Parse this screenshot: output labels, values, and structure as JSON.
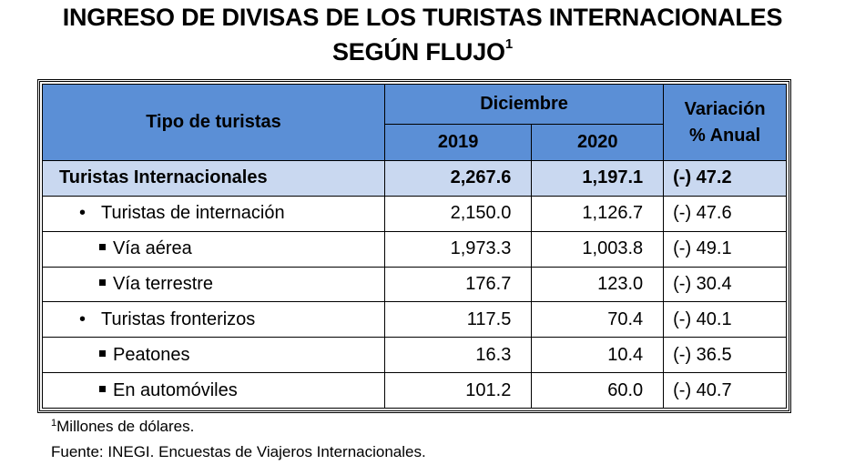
{
  "title_line1": "INGRESO DE DIVISAS DE LOS TURISTAS INTERNACIONALES",
  "title_line2": "SEGÚN FLUJO",
  "title_footnote_mark": "1",
  "headers": {
    "type": "Tipo de turistas",
    "period": "Diciembre",
    "year1": "2019",
    "year2": "2020",
    "var_line1": "Variación",
    "var_line2": "% Anual"
  },
  "chart_data": {
    "type": "table",
    "columns": [
      "Tipo de turistas",
      "2019",
      "2020",
      "Variación % Anual"
    ],
    "rows": [
      {
        "label": "Turistas Internacionales",
        "level": 0,
        "y2019": "2,267.6",
        "y2020": "1,197.1",
        "variation": "(-) 47.2"
      },
      {
        "label": "Turistas de internación",
        "level": 1,
        "y2019": "2,150.0",
        "y2020": "1,126.7",
        "variation": "(-) 47.6"
      },
      {
        "label": "Vía aérea",
        "level": 2,
        "y2019": "1,973.3",
        "y2020": "1,003.8",
        "variation": "(-) 49.1"
      },
      {
        "label": "Vía terrestre",
        "level": 2,
        "y2019": "176.7",
        "y2020": "123.0",
        "variation": "(-) 30.4"
      },
      {
        "label": "Turistas fronterizos",
        "level": 1,
        "y2019": "117.5",
        "y2020": "70.4",
        "variation": "(-) 40.1"
      },
      {
        "label": "Peatones",
        "level": 2,
        "y2019": "16.3",
        "y2020": "10.4",
        "variation": "(-) 36.5"
      },
      {
        "label": "En automóviles",
        "level": 2,
        "y2019": "101.2",
        "y2020": "60.0",
        "variation": "(-) 40.7"
      }
    ]
  },
  "footnote_mark": "1",
  "footnote": "Millones de dólares.",
  "source": "Fuente: INEGI. Encuestas de Viajeros Internacionales.",
  "colors": {
    "header_bg": "#5b8fd6",
    "total_row_bg": "#c9d8f0"
  }
}
